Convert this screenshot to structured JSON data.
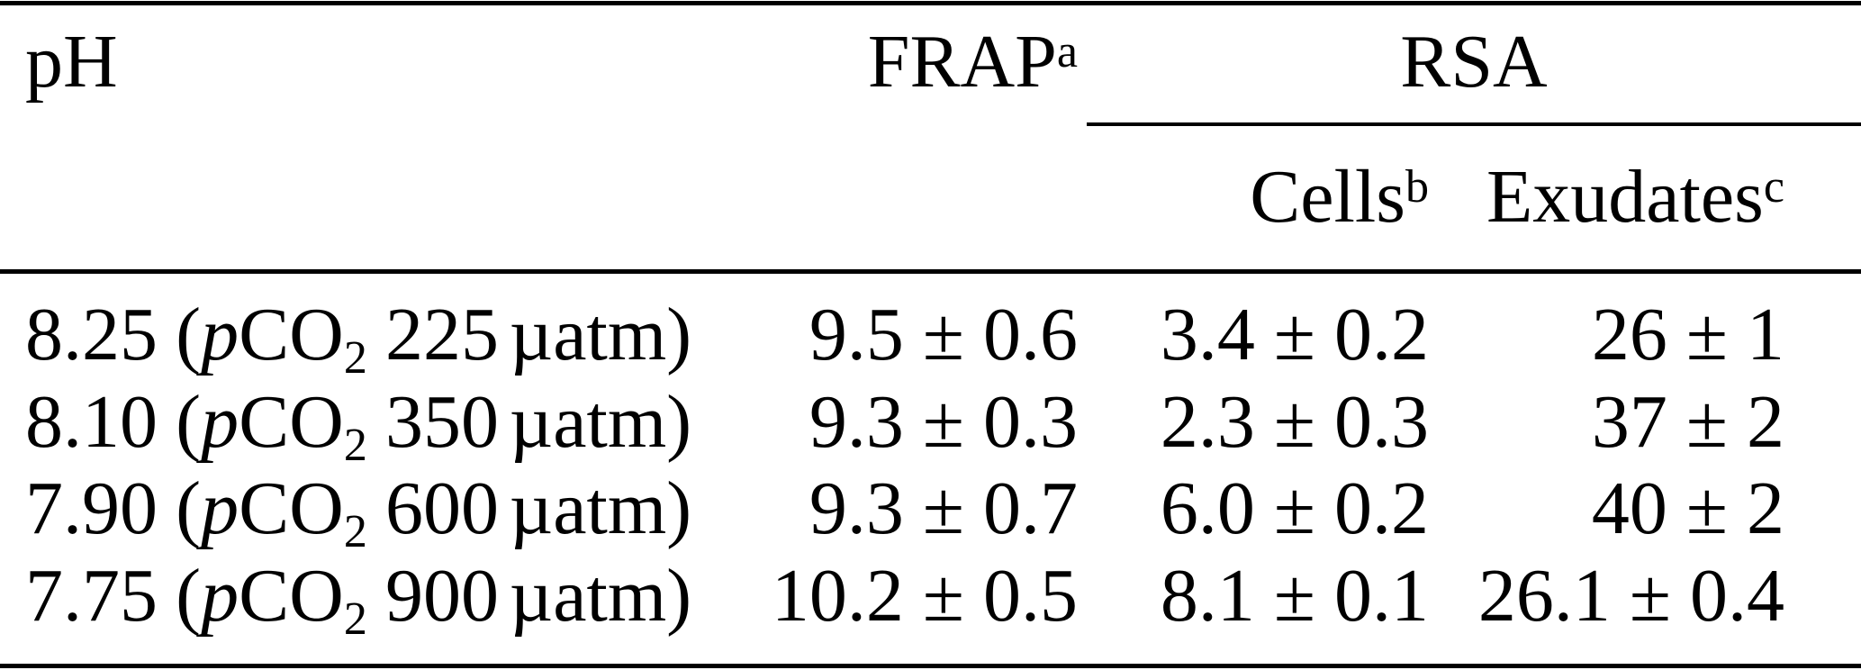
{
  "table": {
    "columns": {
      "ph": "pH",
      "frap": {
        "label": "FRAP",
        "sup": "a"
      },
      "rsa": "RSA",
      "cells": {
        "label": "Cells",
        "sup": "b"
      },
      "exudates": {
        "label": "Exudates",
        "sup": "c"
      }
    },
    "fragments": {
      "paren_open": "(",
      "p_italic": "p",
      "co": "CO",
      "sub_2": "2",
      "unit": "µatm",
      "paren_close": ")"
    },
    "rows": [
      {
        "ph": "8.25",
        "pco2": "225",
        "frap": "9.5 ± 0.6",
        "cells": "3.4 ± 0.2",
        "exudates": "26 ± 1"
      },
      {
        "ph": "8.10",
        "pco2": "350",
        "frap": "9.3 ± 0.3",
        "cells": "2.3 ± 0.3",
        "exudates": "37 ± 2"
      },
      {
        "ph": "7.90",
        "pco2": "600",
        "frap": "9.3 ± 0.7",
        "cells": "6.0 ± 0.2",
        "exudates": "40 ± 2"
      },
      {
        "ph": "7.75",
        "pco2": "900",
        "frap": "10.2 ± 0.5",
        "cells": "8.1 ± 0.1",
        "exudates": "26.1 ± 0.4"
      }
    ]
  }
}
